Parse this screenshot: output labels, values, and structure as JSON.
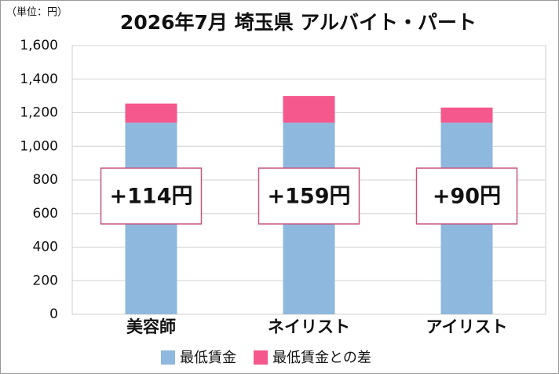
{
  "chart_data": {
    "type": "stacked_bar",
    "title": "2026年7月 埼玉県 アルバイト・パート",
    "y_unit_label": "（単位：円）",
    "categories": [
      "美容師",
      "ネイリスト",
      "アイリスト"
    ],
    "series": [
      {
        "name": "最低賃金",
        "color": "#8fb8de",
        "values": [
          1141,
          1141,
          1141
        ]
      },
      {
        "name": "最低賃金との差",
        "color": "#f4588c",
        "values": [
          114,
          159,
          90
        ],
        "value_labels": [
          "+114円",
          "+159円",
          "+90円"
        ]
      }
    ],
    "ylim": [
      0,
      1600
    ],
    "yticks": [
      0,
      200,
      400,
      600,
      800,
      {
        "value": 1000,
        "label": "1,000"
      },
      {
        "value": 1200,
        "label": "1,200"
      },
      {
        "value": 1400,
        "label": "1,400"
      },
      {
        "value": 1600,
        "label": "1,600"
      }
    ],
    "grid": true
  }
}
